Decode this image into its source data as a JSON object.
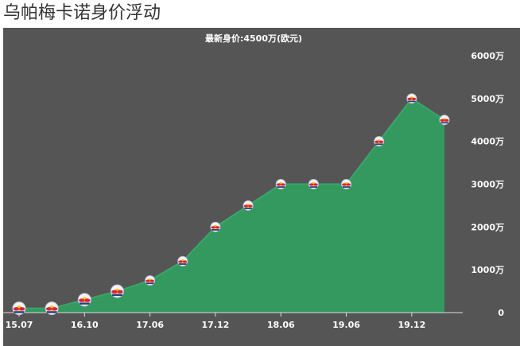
{
  "page": {
    "title": "乌帕梅卡诺身价浮动"
  },
  "colors": {
    "background": "#555555",
    "area_fill": "#33995f",
    "line": "#3aa56a",
    "text": "#ffffff"
  },
  "marker_icon": "red-bull-club-crest-icon",
  "chart_data": {
    "type": "area",
    "title": "最新身价:4500万(欧元)",
    "xlabel": "",
    "ylabel": "",
    "y_unit": "万",
    "ylim": [
      0,
      6000
    ],
    "yticks": [
      {
        "value": 0,
        "label": "0"
      },
      {
        "value": 1000,
        "label": "1000万"
      },
      {
        "value": 2000,
        "label": "2000万"
      },
      {
        "value": 3000,
        "label": "3000万"
      },
      {
        "value": 4000,
        "label": "4000万"
      },
      {
        "value": 5000,
        "label": "5000万"
      },
      {
        "value": 6000,
        "label": "6000万"
      }
    ],
    "x_tick_labels": [
      "15.07",
      "16.10",
      "17.06",
      "17.12",
      "18.06",
      "19.06",
      "19.12"
    ],
    "x_tick_indices": [
      0,
      2,
      4,
      6,
      8,
      10,
      12
    ],
    "grid": false,
    "legend": "none",
    "series": [
      {
        "values": [
          100,
          100,
          300,
          500,
          750,
          1200,
          2000,
          2500,
          3000,
          3000,
          3000,
          4000,
          5000,
          4500
        ]
      }
    ]
  }
}
